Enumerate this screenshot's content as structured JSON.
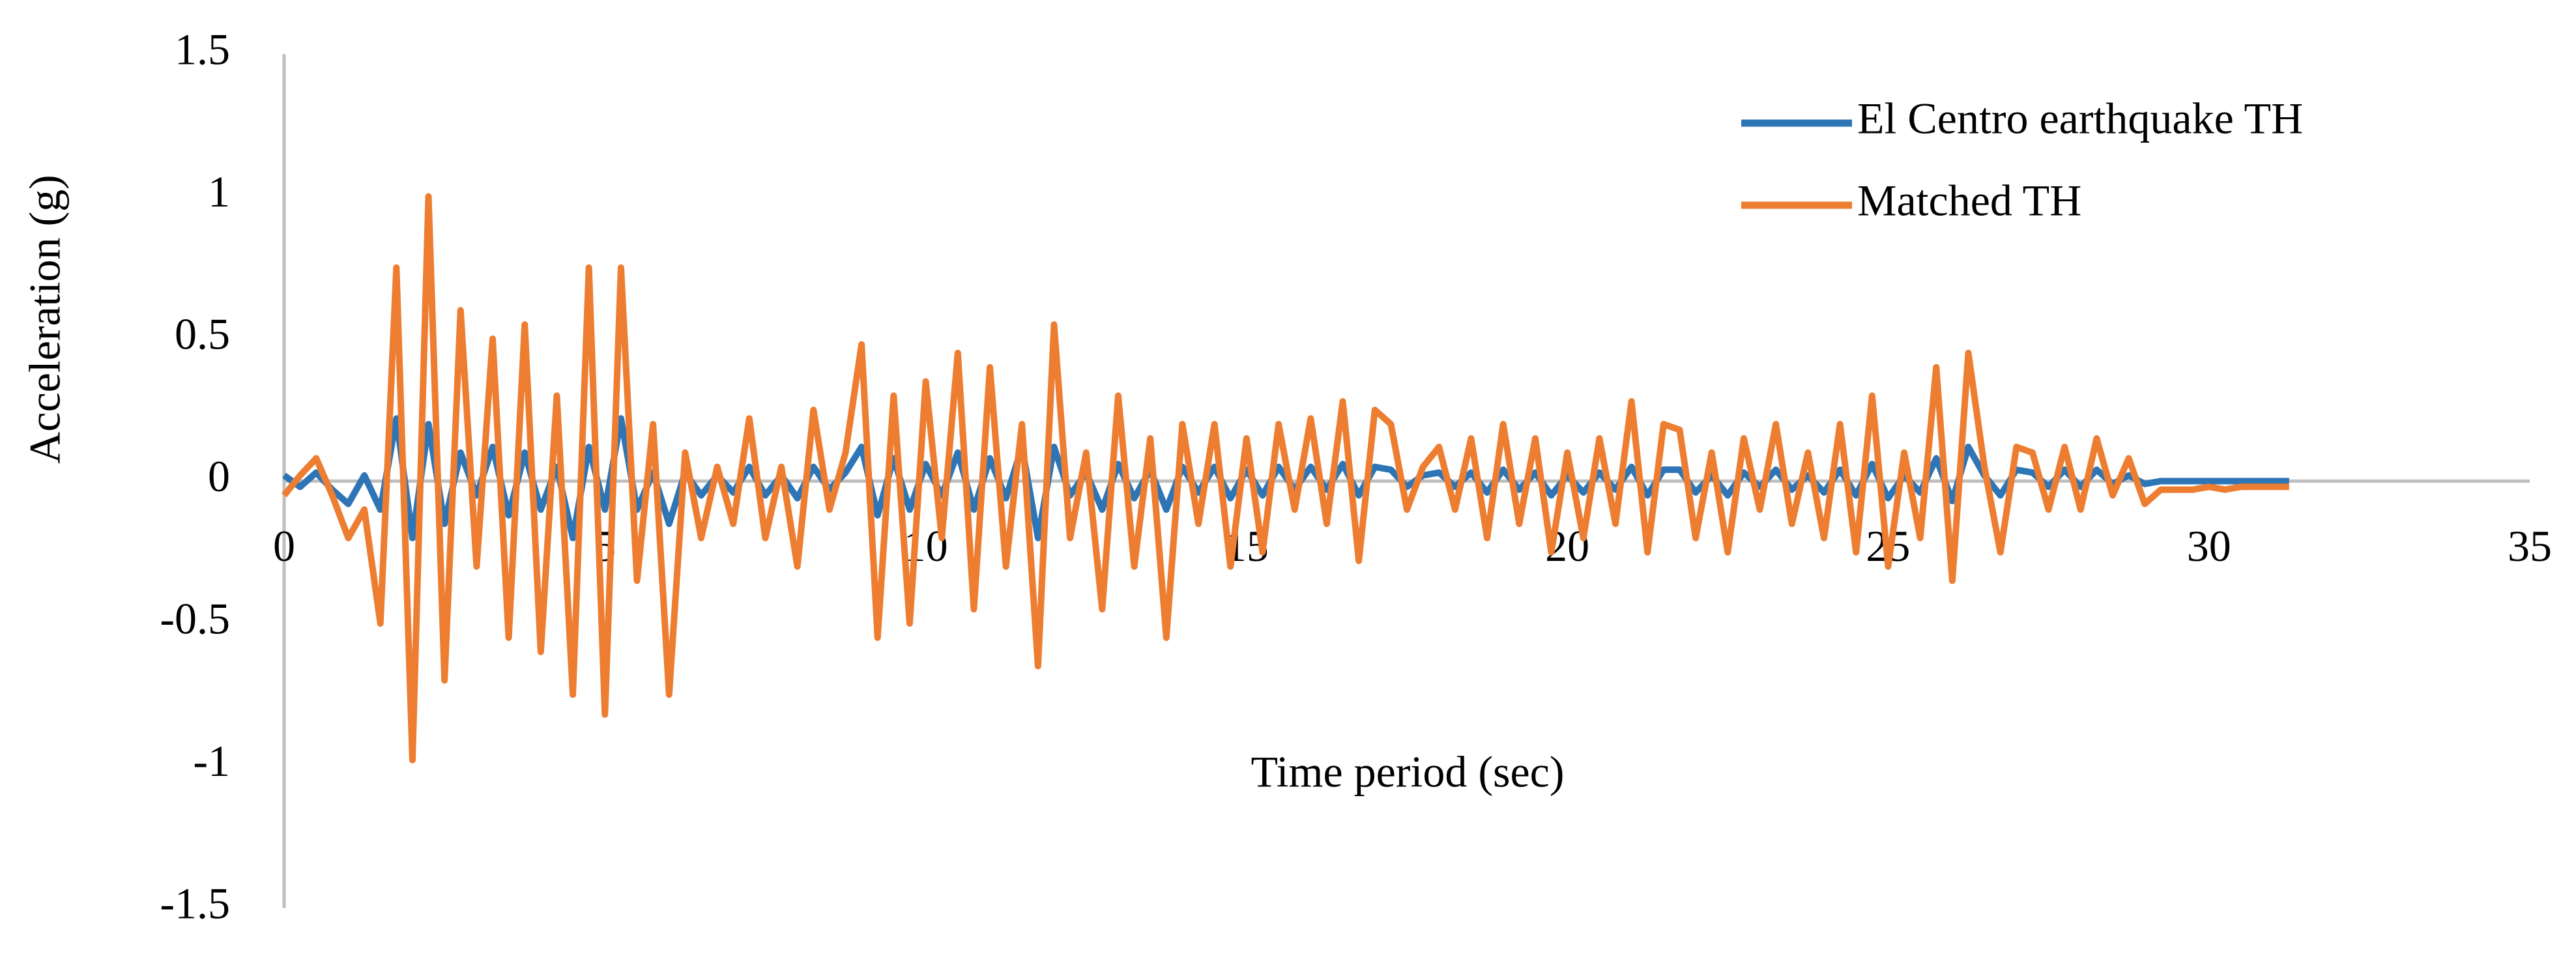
{
  "chart_data": {
    "type": "line",
    "x_label": "Time period (sec)",
    "y_label": "Acceleration (g)",
    "xlim": [
      0,
      35
    ],
    "xticks": [
      0,
      5,
      10,
      15,
      20,
      25,
      30,
      35
    ],
    "ylim": [
      -1.5,
      1.5
    ],
    "yticks": [
      1.5,
      1,
      0.5,
      0,
      -0.5,
      -1,
      -1.5
    ],
    "grid": false,
    "legend": "top-right",
    "x": [
      0,
      0.25,
      0.5,
      0.75,
      1,
      1.25,
      1.5,
      1.75,
      2,
      2.25,
      2.5,
      2.75,
      3,
      3.25,
      3.5,
      3.75,
      4,
      4.25,
      4.5,
      4.75,
      5,
      5.25,
      5.5,
      5.75,
      6,
      6.25,
      6.5,
      6.75,
      7,
      7.25,
      7.5,
      7.75,
      8,
      8.25,
      8.5,
      8.75,
      9,
      9.25,
      9.5,
      9.75,
      10,
      10.25,
      10.5,
      10.75,
      11,
      11.25,
      11.5,
      11.75,
      12,
      12.25,
      12.5,
      12.75,
      13,
      13.25,
      13.5,
      13.75,
      14,
      14.25,
      14.5,
      14.75,
      15,
      15.25,
      15.5,
      15.75,
      16,
      16.25,
      16.5,
      16.75,
      17,
      17.25,
      17.5,
      17.75,
      18,
      18.25,
      18.5,
      18.75,
      19,
      19.25,
      19.5,
      19.75,
      20,
      20.25,
      20.5,
      20.75,
      21,
      21.25,
      21.5,
      21.75,
      22,
      22.25,
      22.5,
      22.75,
      23,
      23.25,
      23.5,
      23.75,
      24,
      24.25,
      24.5,
      24.75,
      25,
      25.25,
      25.5,
      25.75,
      26,
      26.25,
      26.5,
      26.75,
      27,
      27.25,
      27.5,
      27.75,
      28,
      28.25,
      28.5,
      28.75,
      29,
      29.25,
      29.5,
      29.75,
      30,
      30.25,
      30.5,
      30.75,
      31,
      31.25
    ],
    "series": [
      {
        "name": "El Centro earthquake TH",
        "color": "#2e75b6",
        "values": [
          0.02,
          -0.02,
          0.03,
          -0.03,
          -0.08,
          0.02,
          -0.1,
          0.22,
          -0.2,
          0.2,
          -0.15,
          0.1,
          -0.05,
          0.12,
          -0.12,
          0.1,
          -0.1,
          0.05,
          -0.2,
          0.12,
          -0.1,
          0.22,
          -0.1,
          0.03,
          -0.15,
          0.03,
          -0.05,
          0.02,
          -0.04,
          0.05,
          -0.05,
          0.02,
          -0.06,
          0.05,
          -0.03,
          0.03,
          0.12,
          -0.12,
          0.08,
          -0.1,
          0.06,
          -0.05,
          0.1,
          -0.1,
          0.08,
          -0.06,
          0.12,
          -0.2,
          0.12,
          -0.05,
          0.03,
          -0.1,
          0.06,
          -0.06,
          0.04,
          -0.1,
          0.05,
          -0.04,
          0.05,
          -0.06,
          0.04,
          -0.05,
          0.05,
          -0.03,
          0.05,
          -0.03,
          0.06,
          -0.05,
          0.05,
          0.04,
          -0.02,
          0.02,
          0.03,
          -0.02,
          0.03,
          -0.04,
          0.04,
          -0.03,
          0.03,
          -0.05,
          0.02,
          -0.04,
          0.03,
          -0.03,
          0.05,
          -0.05,
          0.04,
          0.04,
          -0.04,
          0.02,
          -0.05,
          0.03,
          -0.02,
          0.04,
          -0.03,
          0.02,
          -0.04,
          0.04,
          -0.05,
          0.06,
          -0.06,
          0.02,
          -0.04,
          0.08,
          -0.07,
          0.12,
          0.02,
          -0.05,
          0.04,
          0.03,
          -0.02,
          0.04,
          -0.02,
          0.04,
          -0.01,
          0.02,
          -0.01,
          0,
          0,
          0,
          0,
          0,
          0,
          0,
          0,
          0
        ]
      },
      {
        "name": "Matched TH",
        "color": "#ed7d31",
        "values": [
          -0.05,
          0.02,
          0.08,
          -0.05,
          -0.2,
          -0.1,
          -0.5,
          0.75,
          -0.98,
          1.0,
          -0.7,
          0.6,
          -0.3,
          0.5,
          -0.55,
          0.55,
          -0.6,
          0.3,
          -0.75,
          0.75,
          -0.82,
          0.75,
          -0.35,
          0.2,
          -0.75,
          0.1,
          -0.2,
          0.05,
          -0.15,
          0.22,
          -0.2,
          0.05,
          -0.3,
          0.25,
          -0.1,
          0.1,
          0.48,
          -0.55,
          0.3,
          -0.5,
          0.35,
          -0.2,
          0.45,
          -0.45,
          0.4,
          -0.3,
          0.2,
          -0.65,
          0.55,
          -0.2,
          0.1,
          -0.45,
          0.3,
          -0.3,
          0.15,
          -0.55,
          0.2,
          -0.15,
          0.2,
          -0.3,
          0.15,
          -0.25,
          0.2,
          -0.1,
          0.22,
          -0.15,
          0.28,
          -0.28,
          0.25,
          0.2,
          -0.1,
          0.05,
          0.12,
          -0.1,
          0.15,
          -0.2,
          0.2,
          -0.15,
          0.15,
          -0.25,
          0.1,
          -0.2,
          0.15,
          -0.15,
          0.28,
          -0.25,
          0.2,
          0.18,
          -0.2,
          0.1,
          -0.25,
          0.15,
          -0.1,
          0.2,
          -0.15,
          0.1,
          -0.2,
          0.2,
          -0.25,
          0.3,
          -0.3,
          0.1,
          -0.2,
          0.4,
          -0.35,
          0.45,
          0.05,
          -0.25,
          0.12,
          0.1,
          -0.1,
          0.12,
          -0.1,
          0.15,
          -0.05,
          0.08,
          -0.08,
          -0.03,
          -0.03,
          -0.03,
          -0.02,
          -0.03,
          -0.02,
          -0.02,
          -0.02,
          -0.02
        ]
      }
    ]
  }
}
